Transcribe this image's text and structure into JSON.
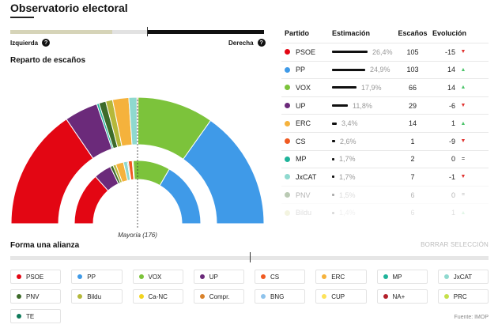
{
  "header": {
    "title": "Observatorio electoral"
  },
  "ideology": {
    "left_label": "Izquierda",
    "right_label": "Derecha",
    "help_glyph": "?"
  },
  "seats_section": {
    "title": "Reparto de escaños",
    "majority_label": "Mayoría (176)"
  },
  "table": {
    "headers": {
      "party": "Partido",
      "estimate": "Estimación",
      "seats": "Escaños",
      "evolution": "Evolución"
    },
    "rows": [
      {
        "party": "PSOE",
        "color": "#e30613",
        "estimate": "26,4%",
        "estimate_value": 26.4,
        "seats": "105",
        "evolution": "-15",
        "trend": "down"
      },
      {
        "party": "PP",
        "color": "#3f9ae8",
        "estimate": "24,9%",
        "estimate_value": 24.9,
        "seats": "103",
        "evolution": "14",
        "trend": "up"
      },
      {
        "party": "VOX",
        "color": "#7cc33b",
        "estimate": "17,9%",
        "estimate_value": 17.9,
        "seats": "66",
        "evolution": "14",
        "trend": "up"
      },
      {
        "party": "UP",
        "color": "#6b2a7a",
        "estimate": "11,8%",
        "estimate_value": 11.8,
        "seats": "29",
        "evolution": "-6",
        "trend": "down"
      },
      {
        "party": "ERC",
        "color": "#f5b23c",
        "estimate": "3,4%",
        "estimate_value": 3.4,
        "seats": "14",
        "evolution": "1",
        "trend": "up"
      },
      {
        "party": "CS",
        "color": "#f05a22",
        "estimate": "2,6%",
        "estimate_value": 2.6,
        "seats": "1",
        "evolution": "-9",
        "trend": "down"
      },
      {
        "party": "MP",
        "color": "#1fb39a",
        "estimate": "1,7%",
        "estimate_value": 1.7,
        "seats": "2",
        "evolution": "0",
        "trend": "equal"
      },
      {
        "party": "JxCAT",
        "color": "#8fd9cf",
        "estimate": "1,7%",
        "estimate_value": 1.7,
        "seats": "7",
        "evolution": "-1",
        "trend": "down"
      },
      {
        "party": "PNV",
        "color": "#3d6b2a",
        "estimate": "1,5%",
        "estimate_value": 1.5,
        "seats": "6",
        "evolution": "0",
        "trend": "equal"
      },
      {
        "party": "Bildu",
        "color": "#b5b83a",
        "estimate": "1,4%",
        "estimate_value": 1.4,
        "seats": "6",
        "evolution": "1",
        "trend": "up"
      }
    ]
  },
  "trend_colors": {
    "up": "#4cc46a",
    "down": "#e0322f",
    "equal": "#222222"
  },
  "trend_glyphs": {
    "up": "▲",
    "down": "▼",
    "equal": "="
  },
  "alliance": {
    "title": "Forma una alianza",
    "clear_label": "BORRAR SELECCIÓN",
    "chips": [
      {
        "label": "PSOE",
        "color": "#e30613"
      },
      {
        "label": "PP",
        "color": "#3f9ae8"
      },
      {
        "label": "VOX",
        "color": "#7cc33b"
      },
      {
        "label": "UP",
        "color": "#6b2a7a"
      },
      {
        "label": "CS",
        "color": "#f05a22"
      },
      {
        "label": "ERC",
        "color": "#f5b23c"
      },
      {
        "label": "MP",
        "color": "#1fb39a"
      },
      {
        "label": "JxCAT",
        "color": "#8fd9cf"
      },
      {
        "label": "PNV",
        "color": "#3d6b2a"
      },
      {
        "label": "Bildu",
        "color": "#b5b83a"
      },
      {
        "label": "Ca-NC",
        "color": "#f2d41f"
      },
      {
        "label": "Compr.",
        "color": "#d9822b"
      },
      {
        "label": "BNG",
        "color": "#8ec3ec"
      },
      {
        "label": "CUP",
        "color": "#fde25a"
      },
      {
        "label": "NA+",
        "color": "#b3202a"
      },
      {
        "label": "PRC",
        "color": "#c5e04a"
      },
      {
        "label": "TE",
        "color": "#0f7a5a"
      }
    ]
  },
  "footer": {
    "source": "Fuente: IMOP"
  },
  "chart_data": {
    "type": "pie",
    "outer_arc": [
      {
        "party": "PSOE",
        "seats": 105,
        "color": "#e30613"
      },
      {
        "party": "UP",
        "seats": 29,
        "color": "#6b2a7a"
      },
      {
        "party": "MP",
        "seats": 2,
        "color": "#1fb39a"
      },
      {
        "party": "PNV",
        "seats": 6,
        "color": "#3d6b2a"
      },
      {
        "party": "Bildu",
        "seats": 6,
        "color": "#b5b83a"
      },
      {
        "party": "ERC",
        "seats": 14,
        "color": "#f5b23c"
      },
      {
        "party": "JxCAT",
        "seats": 7,
        "color": "#8fd9cf"
      },
      {
        "party": "CS",
        "seats": 1,
        "color": "#f05a22"
      },
      {
        "party": "VOX",
        "seats": 66,
        "color": "#7cc33b"
      },
      {
        "party": "PP",
        "seats": 103,
        "color": "#3f9ae8"
      }
    ],
    "inner_arc": [
      {
        "party": "PSOE",
        "share": 0.268,
        "color": "#e30613"
      },
      {
        "party": "UP",
        "share": 0.09,
        "color": "#6b2a7a"
      },
      {
        "party": "PNV",
        "share": 0.015,
        "color": "#3d6b2a"
      },
      {
        "party": "Bildu",
        "share": 0.015,
        "color": "#b5b83a"
      },
      {
        "party": "ERC",
        "share": 0.04,
        "color": "#f5b23c"
      },
      {
        "party": "JxCAT",
        "share": 0.02,
        "color": "#8fd9cf"
      },
      {
        "party": "MP",
        "share": 0.005,
        "color": "#1fb39a"
      },
      {
        "party": "CS",
        "share": 0.02,
        "color": "#f05a22"
      },
      {
        "party": "Ca-NC",
        "share": 0.005,
        "color": "#f2d41f"
      },
      {
        "party": "VOX",
        "share": 0.19,
        "color": "#7cc33b"
      },
      {
        "party": "PP",
        "share": 0.332,
        "color": "#3f9ae8"
      }
    ],
    "majority": 176
  }
}
